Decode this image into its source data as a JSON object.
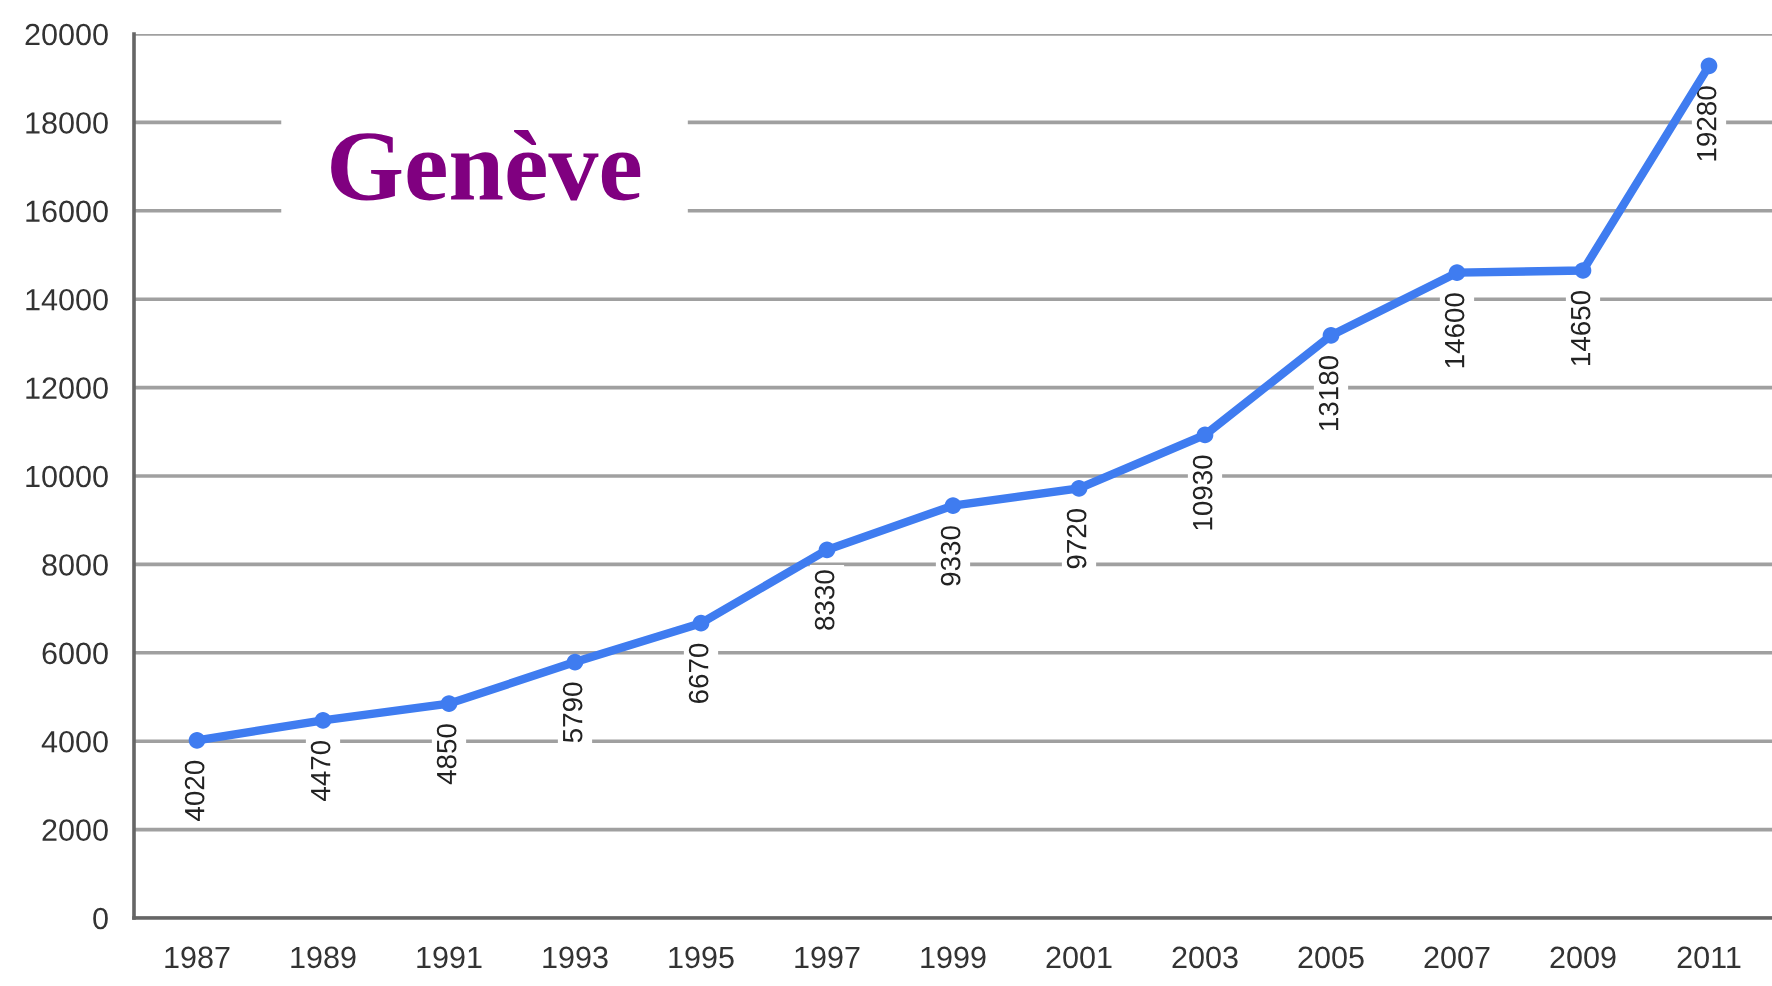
{
  "chart_data": {
    "type": "line",
    "title": "Genève",
    "categories": [
      "1987",
      "1989",
      "1991",
      "1993",
      "1995",
      "1997",
      "1999",
      "2001",
      "2003",
      "2005",
      "2007",
      "2009",
      "2011"
    ],
    "series": [
      {
        "color": "#3f7cf0",
        "values": [
          4020,
          4470,
          4850,
          5790,
          6670,
          8330,
          9330,
          9720,
          10930,
          13180,
          14600,
          14650,
          19280
        ]
      }
    ],
    "ylim": [
      0,
      20000
    ],
    "yticks": [
      0,
      2000,
      4000,
      6000,
      8000,
      10000,
      12000,
      14000,
      16000,
      18000,
      20000
    ],
    "grid": "y",
    "marker": "circle",
    "line_style": "solid",
    "data_labels": true
  }
}
